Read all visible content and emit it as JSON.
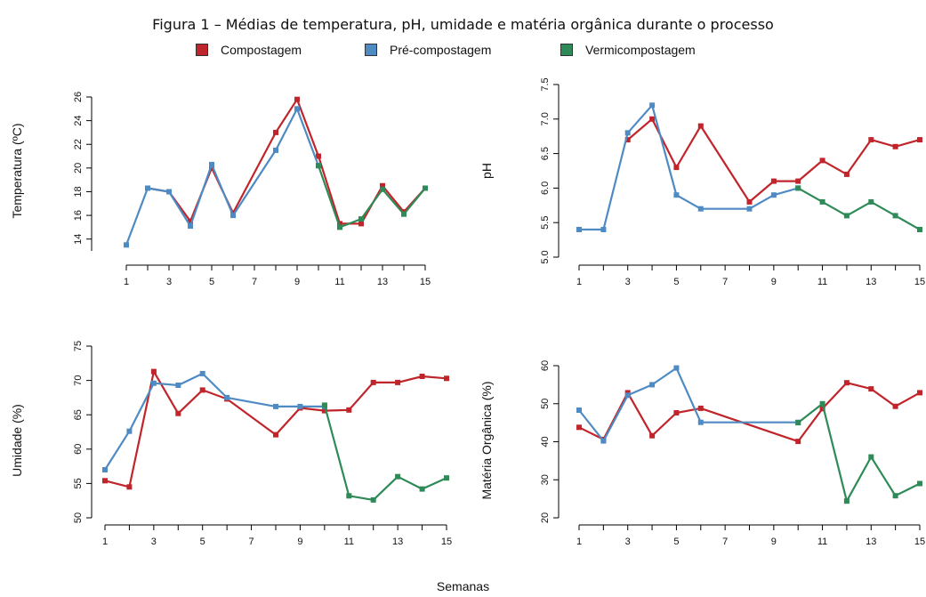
{
  "figure_title": "Figura 1 – Médias de temperatura, pH, umidade e matéria orgânica durante o processo",
  "legend": [
    {
      "label": "Compostagem",
      "color": "#c0252b"
    },
    {
      "label": "Pré-compostagem",
      "color": "#4f8bc3"
    },
    {
      "label": "Vermicompostagem",
      "color": "#2e8b57"
    }
  ],
  "common_xlabel": "Semanas",
  "chart_data": [
    {
      "type": "line",
      "ylabel": "Temperatura (ºC)",
      "xticks": [
        "1",
        "3",
        "5",
        "7",
        "9",
        "11",
        "13",
        "15"
      ],
      "xlim": [
        1,
        15
      ],
      "yticks": [
        "14",
        "16",
        "18",
        "20",
        "22",
        "24",
        "26"
      ],
      "ylim": [
        13,
        26
      ],
      "series": [
        {
          "name": "Compostagem",
          "x": [
            2,
            3,
            4,
            5,
            6,
            8,
            9,
            10,
            11,
            12,
            13,
            14,
            15
          ],
          "y": [
            18.3,
            18,
            15.5,
            20,
            16.2,
            23,
            25.8,
            21,
            15.3,
            15.3,
            18.5,
            16.3,
            18.3
          ]
        },
        {
          "name": "Pré-compostagem",
          "x": [
            1,
            2,
            3,
            4,
            5,
            6,
            8,
            9,
            10
          ],
          "y": [
            13.5,
            18.3,
            18,
            15.1,
            20.3,
            16,
            21.5,
            25,
            20.2
          ]
        },
        {
          "name": "Vermicompostagem",
          "x": [
            10,
            11,
            12,
            13,
            14,
            15
          ],
          "y": [
            20.2,
            15,
            15.7,
            18.2,
            16.1,
            18.3
          ]
        }
      ]
    },
    {
      "type": "line",
      "ylabel": "pH",
      "xticks": [
        "1",
        "3",
        "5",
        "7",
        "9",
        "11",
        "13",
        "15"
      ],
      "xlim": [
        1,
        15
      ],
      "yticks": [
        "5.0",
        "5.5",
        "6.0",
        "6.5",
        "7.0",
        "7.5"
      ],
      "ylim": [
        5,
        7.5
      ],
      "series": [
        {
          "name": "Compostagem",
          "x": [
            3,
            4,
            5,
            6,
            8,
            9,
            10,
            11,
            12,
            13,
            14,
            15
          ],
          "y": [
            6.7,
            7,
            6.3,
            6.9,
            5.8,
            6.1,
            6.1,
            6.4,
            6.2,
            6.7,
            6.6,
            6.7
          ]
        },
        {
          "name": "Pré-compostagem",
          "x": [
            1,
            2,
            3,
            4,
            5,
            6,
            8,
            9,
            10
          ],
          "y": [
            5.4,
            5.4,
            6.8,
            7.2,
            5.9,
            5.7,
            5.7,
            5.9,
            6
          ]
        },
        {
          "name": "Vermicompostagem",
          "x": [
            10,
            11,
            12,
            13,
            14,
            15
          ],
          "y": [
            6,
            5.8,
            5.6,
            5.8,
            5.6,
            5.4
          ]
        }
      ]
    },
    {
      "type": "line",
      "ylabel": "Umidade (%)",
      "xticks": [
        "1",
        "3",
        "5",
        "7",
        "9",
        "11",
        "13",
        "15"
      ],
      "xlim": [
        1,
        15
      ],
      "yticks": [
        "50",
        "55",
        "60",
        "65",
        "70",
        "75"
      ],
      "ylim": [
        50,
        75
      ],
      "series": [
        {
          "name": "Compostagem",
          "x": [
            1,
            2,
            3,
            4,
            5,
            6,
            8,
            9,
            10,
            11,
            12,
            13,
            14,
            15
          ],
          "y": [
            55.4,
            54.5,
            71.3,
            65.2,
            68.6,
            67.3,
            62.1,
            66,
            65.6,
            65.7,
            69.7,
            69.7,
            70.6,
            70.3
          ]
        },
        {
          "name": "Pré-compostagem",
          "x": [
            1,
            2,
            3,
            4,
            5,
            6,
            8,
            9,
            10
          ],
          "y": [
            57,
            62.6,
            69.6,
            69.3,
            71,
            67.5,
            66.2,
            66.2,
            66.2
          ]
        },
        {
          "name": "Vermicompostagem",
          "x": [
            10,
            11,
            12,
            13,
            14,
            15
          ],
          "y": [
            66.4,
            53.2,
            52.6,
            56,
            54.2,
            55.8
          ]
        }
      ]
    },
    {
      "type": "line",
      "ylabel": "Matéria Orgânica (%)",
      "xticks": [
        "1",
        "3",
        "5",
        "7",
        "9",
        "11",
        "13",
        "15"
      ],
      "xlim": [
        1,
        15
      ],
      "yticks": [
        "20",
        "30",
        "40",
        "50",
        "60"
      ],
      "ylim": [
        20,
        60
      ],
      "series": [
        {
          "name": "Compostagem",
          "x": [
            1,
            2,
            3,
            4,
            5,
            6,
            10,
            11,
            12,
            13,
            14,
            15
          ],
          "y": [
            43.8,
            40.6,
            52.9,
            41.6,
            47.6,
            48.8,
            40.1,
            48.7,
            55.5,
            53.9,
            49.3,
            52.9
          ]
        },
        {
          "name": "Pré-compostagem",
          "x": [
            1,
            2,
            3,
            4,
            5,
            6,
            10
          ],
          "y": [
            48.3,
            40.2,
            52.2,
            55,
            59.4,
            45.1,
            45.1
          ]
        },
        {
          "name": "Vermicompostagem",
          "x": [
            10,
            11,
            12,
            13,
            14,
            15
          ],
          "y": [
            45,
            50,
            24.4,
            36,
            25.8,
            29
          ]
        }
      ]
    }
  ]
}
